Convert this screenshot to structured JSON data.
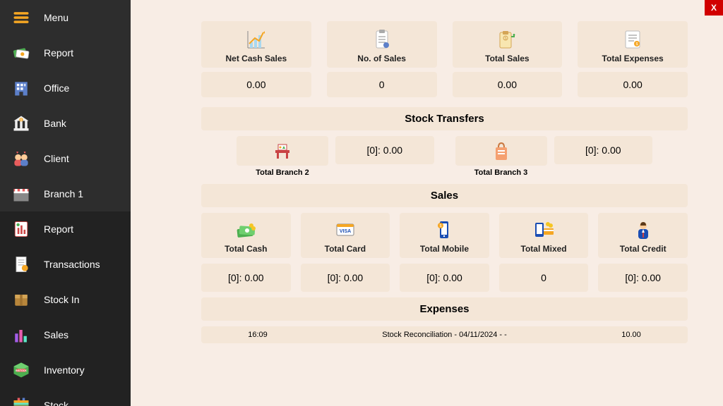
{
  "colors": {
    "sidebar_bg": "#2d2d2d",
    "sidebar_sub_bg": "#222222",
    "main_bg": "#f8ede5",
    "card_bg": "#f4e6d7",
    "close_bg": "#d10000",
    "accent_orange": "#f5a623",
    "text": "#222222"
  },
  "close_label": "X",
  "sidebar": {
    "items": [
      {
        "label": "Menu",
        "icon": "hamburger"
      },
      {
        "label": "Report",
        "icon": "cash"
      },
      {
        "label": "Office",
        "icon": "office"
      },
      {
        "label": "Bank",
        "icon": "bank"
      },
      {
        "label": "Client",
        "icon": "clients"
      },
      {
        "label": "Branch 1",
        "icon": "shop"
      },
      {
        "label": "Report",
        "icon": "clipreport",
        "sub": true
      },
      {
        "label": "Transactions",
        "icon": "receipt",
        "sub": true
      },
      {
        "label": "Stock In",
        "icon": "box",
        "sub": true
      },
      {
        "label": "Sales",
        "icon": "bars",
        "sub": true
      },
      {
        "label": "Inventory",
        "icon": "instock",
        "sub": true
      },
      {
        "label": "Stock",
        "icon": "stockb",
        "sub": true
      }
    ]
  },
  "summary": [
    {
      "title": "Net Cash Sales",
      "value": "0.00",
      "icon": "chart"
    },
    {
      "title": "No. of Sales",
      "value": "0",
      "icon": "clipcount"
    },
    {
      "title": "Total Sales",
      "value": "0.00",
      "icon": "money"
    },
    {
      "title": "Total Expenses",
      "value": "0.00",
      "icon": "invoice"
    }
  ],
  "transfers": {
    "title": "Stock Transfers",
    "items": [
      {
        "label": "Total Branch 2",
        "value": "[0]: 0.00",
        "icon": "table"
      },
      {
        "label": "Total Branch 3",
        "value": "[0]: 0.00",
        "icon": "bag"
      }
    ]
  },
  "sales": {
    "title": "Sales",
    "items": [
      {
        "label": "Total Cash",
        "value": "[0]: 0.00",
        "icon": "cashstack"
      },
      {
        "label": "Total Card",
        "value": "[0]: 0.00",
        "icon": "visa"
      },
      {
        "label": "Total Mobile",
        "value": "[0]: 0.00",
        "icon": "mobile"
      },
      {
        "label": "Total Mixed",
        "value": "0",
        "icon": "mixed"
      },
      {
        "label": "Total Credit",
        "value": "[0]: 0.00",
        "icon": "person"
      }
    ]
  },
  "expenses": {
    "title": "Expenses",
    "time": "16:09",
    "desc": "Stock Reconciliation - 04/11/2024  -  -",
    "amount": "10.00"
  }
}
